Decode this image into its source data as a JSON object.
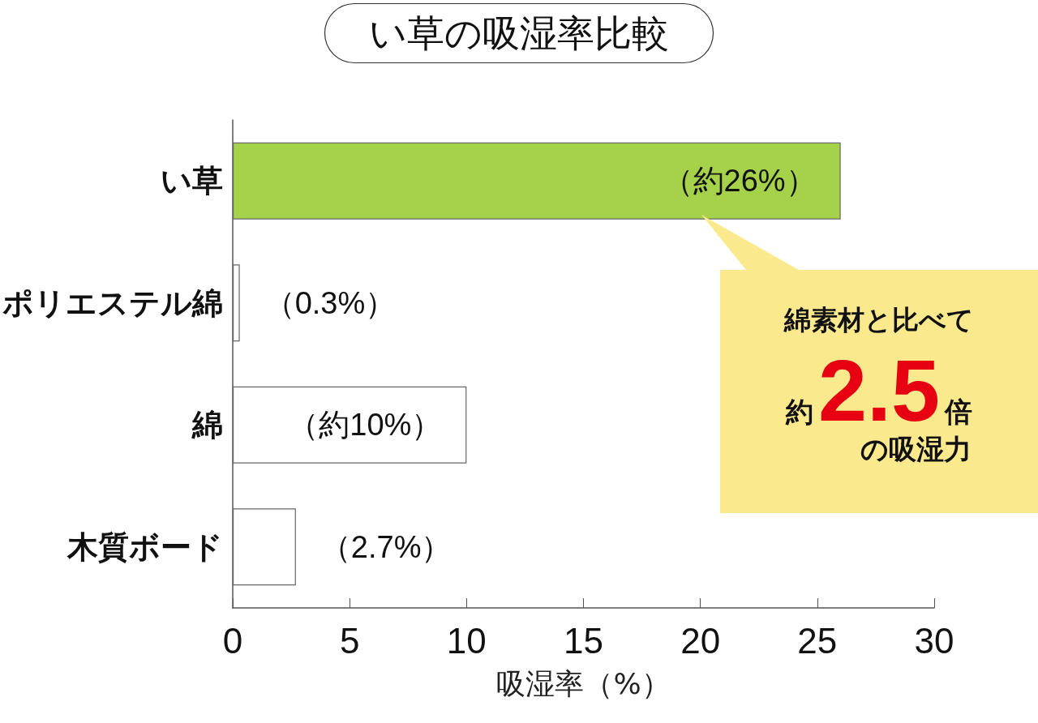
{
  "chart_data": {
    "type": "bar",
    "orientation": "horizontal",
    "title": "い草の吸湿率比較",
    "xlabel": "吸湿率（%）",
    "categories": [
      "い草",
      "ポリエステル綿",
      "綿",
      "木質ボード"
    ],
    "values": [
      26,
      0.3,
      10,
      2.7
    ],
    "colors": [
      "#a6d14a",
      "#ffffff",
      "#ffffff",
      "#ffffff"
    ],
    "value_labels": [
      "（約26%）",
      "（0.3%）",
      "（約10%）",
      "（2.7%）"
    ],
    "xlim": [
      0,
      30
    ],
    "xticks": [
      0,
      5,
      10,
      15,
      20,
      25,
      30
    ],
    "grid": false,
    "annotations": [
      "綿素材と比べて",
      "約",
      "2.5",
      "倍",
      "の吸湿力"
    ]
  }
}
